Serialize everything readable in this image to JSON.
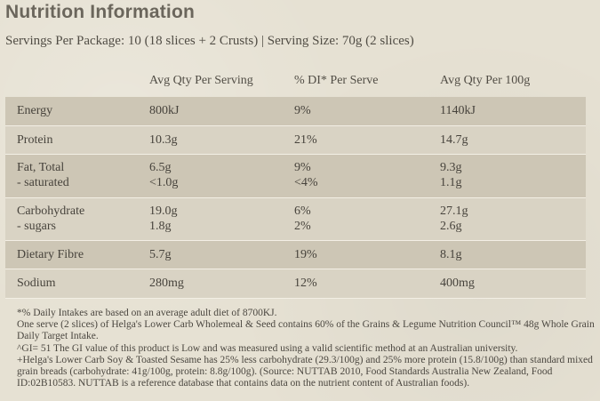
{
  "title": "Nutrition Information",
  "servings": "Servings Per Package: 10 (18 slices + 2 Crusts) | Serving Size: 70g (2 slices)",
  "headers": [
    "",
    "Avg Qty Per Serving",
    "% DI* Per Serve",
    "Avg Qty Per 100g"
  ],
  "rows": [
    {
      "label": "Energy",
      "serving": "800kJ",
      "di": "9%",
      "per100": "1140kJ"
    },
    {
      "label": "Protein",
      "serving": "10.3g",
      "di": "21%",
      "per100": "14.7g"
    },
    {
      "label": "Fat, Total",
      "sublabel": "- saturated",
      "serving": "6.5g",
      "serving2": "<1.0g",
      "di": "9%",
      "di2": "<4%",
      "per100": "9.3g",
      "per100_2": "1.1g"
    },
    {
      "label": "Carbohydrate",
      "sublabel": "- sugars",
      "serving": "19.0g",
      "serving2": "1.8g",
      "di": "6%",
      "di2": "2%",
      "per100": "27.1g",
      "per100_2": "2.6g"
    },
    {
      "label": "Dietary Fibre",
      "serving": "5.7g",
      "di": "19%",
      "per100": "8.1g"
    },
    {
      "label": "Sodium",
      "serving": "280mg",
      "di": "12%",
      "per100": "400mg"
    }
  ],
  "footnotes": [
    "*% Daily Intakes are based on an average adult diet of 8700KJ.",
    "One serve (2 slices) of Helga's Lower Carb Wholemeal & Seed contains 60% of the Grains & Legume Nutrition Council™ 48g Whole Grain Daily Target Intake.",
    "^GI= 51 The GI value of this product is Low and was measured using a valid scientific method at an Australian university.",
    "+Helga's Lower Carb Soy & Toasted Sesame has 25% less carbohydrate (29.3/100g) and 25% more protein (15.8/100g) than standard mixed grain breads (carbohydrate: 41g/100g, protein: 8.8g/100g). (Source: NUTTAB 2010, Food Standards Australia New Zealand, Food ID:02B10583. NUTTAB is a reference database that contains data on the nutrient content of Australian foods)."
  ]
}
